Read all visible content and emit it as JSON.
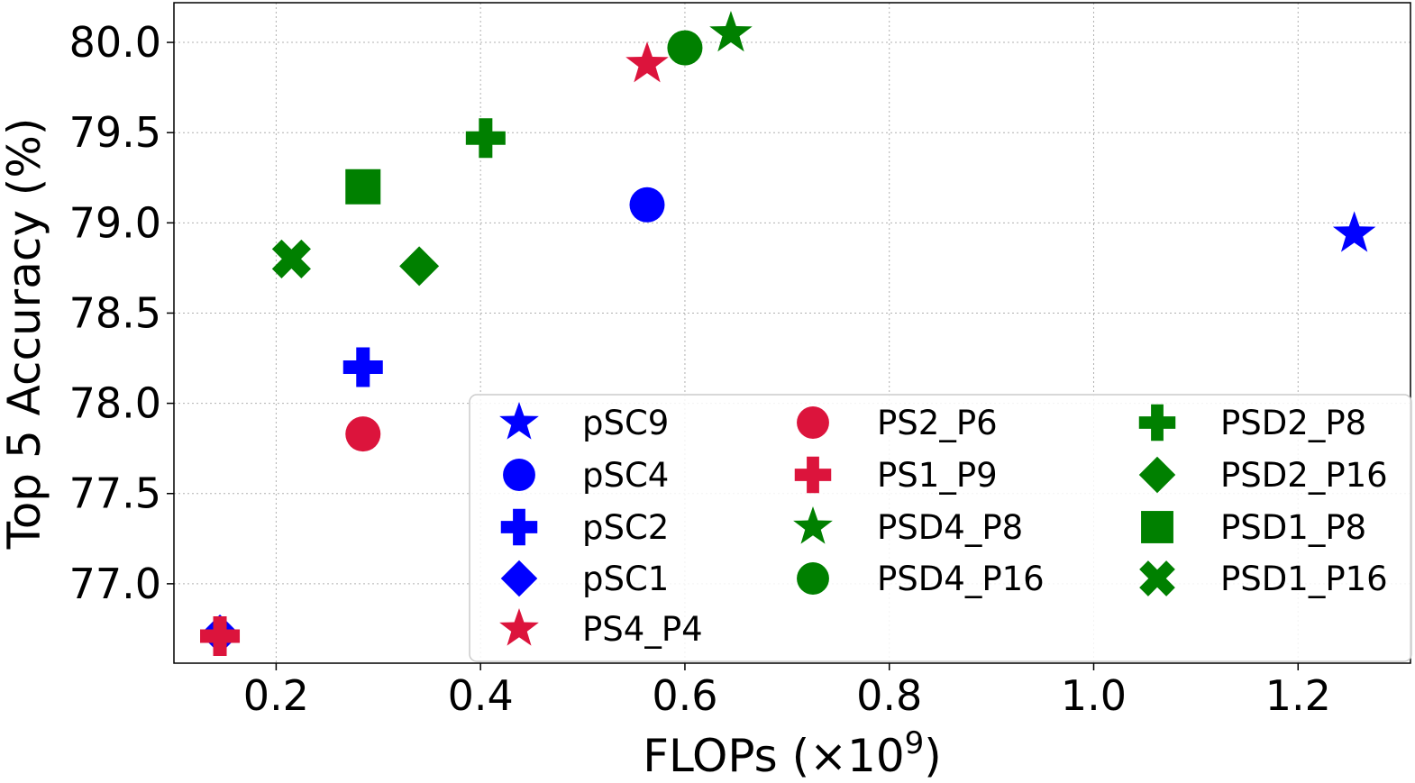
{
  "chart_data": {
    "type": "scatter",
    "xlabel": "FLOPs (×10",
    "xlabel_exp": "9",
    "xlabel_close": ")",
    "ylabel": "Top 5 Accuracy (%)",
    "xlim": [
      0.1,
      1.31
    ],
    "ylim": [
      76.56,
      80.22
    ],
    "xticks": [
      0.2,
      0.4,
      0.6,
      0.8,
      1.0,
      1.2
    ],
    "xtick_labels": [
      "0.2",
      "0.4",
      "0.6",
      "0.8",
      "1.0",
      "1.2"
    ],
    "yticks": [
      77.0,
      77.5,
      78.0,
      78.5,
      79.0,
      79.5,
      80.0
    ],
    "ytick_labels": [
      "77.0",
      "77.5",
      "78.0",
      "78.5",
      "79.0",
      "79.5",
      "80.0"
    ],
    "grid": true,
    "legend_location": "lower-right",
    "colors": {
      "blue": "#0000ff",
      "red": "#dc143c",
      "green": "#008000"
    },
    "series": [
      {
        "name": "pSC9",
        "marker": "star",
        "color": "#0000ff",
        "x": 1.255,
        "y": 78.94
      },
      {
        "name": "pSC4",
        "marker": "circle",
        "color": "#0000ff",
        "x": 0.563,
        "y": 79.1
      },
      {
        "name": "pSC2",
        "marker": "plus",
        "color": "#0000ff",
        "x": 0.285,
        "y": 78.2
      },
      {
        "name": "pSC1",
        "marker": "diamond",
        "color": "#0000ff",
        "x": 0.145,
        "y": 76.72
      },
      {
        "name": "PS4_P4",
        "marker": "star",
        "color": "#dc143c",
        "x": 0.563,
        "y": 79.88
      },
      {
        "name": "PS2_P6",
        "marker": "circle",
        "color": "#dc143c",
        "x": 0.285,
        "y": 77.83
      },
      {
        "name": "PS1_P9",
        "marker": "plus",
        "color": "#dc143c",
        "x": 0.145,
        "y": 76.71
      },
      {
        "name": "PSD4_P8",
        "marker": "star",
        "color": "#008000",
        "x": 0.645,
        "y": 80.05
      },
      {
        "name": "PSD4_P16",
        "marker": "circle",
        "color": "#008000",
        "x": 0.6,
        "y": 79.97
      },
      {
        "name": "PSD2_P8",
        "marker": "plus",
        "color": "#008000",
        "x": 0.405,
        "y": 79.47
      },
      {
        "name": "PSD2_P16",
        "marker": "diamond",
        "color": "#008000",
        "x": 0.34,
        "y": 78.76
      },
      {
        "name": "PSD1_P8",
        "marker": "square",
        "color": "#008000",
        "x": 0.285,
        "y": 79.2
      },
      {
        "name": "PSD1_P16",
        "marker": "x",
        "color": "#008000",
        "x": 0.215,
        "y": 78.8
      }
    ]
  }
}
